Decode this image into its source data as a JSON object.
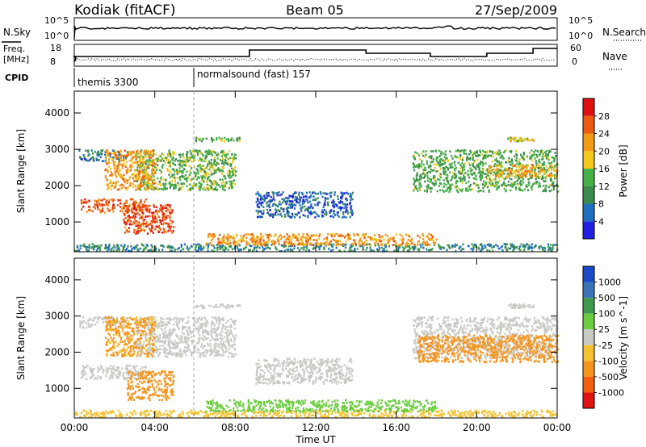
{
  "header": {
    "station": "Kodiak (fitACF)",
    "beam": "Beam 05",
    "date": "27/Sep/2009"
  },
  "top_panels": {
    "nsky": {
      "label": "N.Sky",
      "ticks": [
        "10^5",
        "10^0"
      ]
    },
    "nsearch": {
      "label": "N.Search",
      "ticks": [
        "10^5",
        "10^0"
      ]
    },
    "freq": {
      "label_line1": "Freq.",
      "label_line2": "[MHz]",
      "ticks": [
        "18",
        "8"
      ]
    },
    "nave": {
      "label": "Nave",
      "ticks": [
        "60",
        "0"
      ]
    },
    "cpid": {
      "label": "CPID",
      "entries": [
        {
          "text": "themis 3300",
          "start_hour": 0
        },
        {
          "text": "normalsound (fast) 157",
          "start_hour": 6
        }
      ]
    }
  },
  "colors": {
    "power_scale": [
      "#2020e0",
      "#1f6fc0",
      "#3c8a4c",
      "#45b045",
      "#f2c81e",
      "#f39a17",
      "#ee5a12",
      "#e01010"
    ],
    "velocity_scale": [
      "#1d48c8",
      "#3b74b8",
      "#3e9a4e",
      "#6acd3e",
      "#c9c9c4",
      "#f5c330",
      "#f7941d",
      "#f45e0e",
      "#e01212"
    ]
  },
  "chart_data": [
    {
      "type": "heatmap",
      "title": "Power",
      "xlabel": "Time UT",
      "ylabel": "Slant Range [km]",
      "x_ticks": [
        "00:00",
        "04:00",
        "08:00",
        "12:00",
        "16:00",
        "20:00",
        "00:00"
      ],
      "xlim": [
        0,
        24
      ],
      "y_ticks": [
        "1000",
        "2000",
        "3000",
        "4000"
      ],
      "ylim": [
        180,
        4600
      ],
      "colorbar": {
        "label": "Power [dB]",
        "ticks": [
          "4",
          "8",
          "12",
          "16",
          "20",
          "24",
          "28"
        ],
        "range": [
          0,
          30
        ]
      },
      "regions": [
        {
          "x": [
            0.3,
            3.6
          ],
          "y": [
            1280,
            1660
          ],
          "value": 26
        },
        {
          "x": [
            2.4,
            4.9
          ],
          "y": [
            700,
            1500
          ],
          "value": 27
        },
        {
          "x": [
            0.2,
            2.6
          ],
          "y": [
            2700,
            3000
          ],
          "value": 7
        },
        {
          "x": [
            3.0,
            8.0
          ],
          "y": [
            1900,
            3000
          ],
          "value": 14
        },
        {
          "x": [
            1.5,
            4.0
          ],
          "y": [
            1900,
            3000
          ],
          "value": 22
        },
        {
          "x": [
            0.0,
            24.0
          ],
          "y": [
            220,
            420
          ],
          "value": 9
        },
        {
          "x": [
            6.5,
            18.0
          ],
          "y": [
            380,
            700
          ],
          "value": 22
        },
        {
          "x": [
            9.0,
            13.8
          ],
          "y": [
            1150,
            1850
          ],
          "value": 6
        },
        {
          "x": [
            16.8,
            24.0
          ],
          "y": [
            1850,
            3000
          ],
          "value": 13
        },
        {
          "x": [
            20.5,
            24.0
          ],
          "y": [
            2250,
            2600
          ],
          "value": 21
        },
        {
          "x": [
            6.0,
            8.2
          ],
          "y": [
            3250,
            3350
          ],
          "value": 13
        },
        {
          "x": [
            21.5,
            22.8
          ],
          "y": [
            3250,
            3350
          ],
          "value": 18
        }
      ]
    },
    {
      "type": "heatmap",
      "title": "Velocity",
      "xlabel": "Time UT",
      "ylabel": "Slant Range [km]",
      "x_ticks": [
        "00:00",
        "04:00",
        "08:00",
        "12:00",
        "16:00",
        "20:00",
        "00:00"
      ],
      "xlim": [
        0,
        24
      ],
      "y_ticks": [
        "1000",
        "2000",
        "3000",
        "4000"
      ],
      "ylim": [
        180,
        4600
      ],
      "colorbar": {
        "label": "Velocity [m s^-1]",
        "ticks": [
          "1000",
          "500",
          "100",
          "25",
          "-25",
          "-100",
          "-500",
          "-1000"
        ]
      },
      "regions": [
        {
          "x": [
            0.3,
            3.6
          ],
          "y": [
            1280,
            1660
          ],
          "value": 10
        },
        {
          "x": [
            2.6,
            4.9
          ],
          "y": [
            700,
            1500
          ],
          "value": -350
        },
        {
          "x": [
            0.2,
            2.6
          ],
          "y": [
            2700,
            3000
          ],
          "value": 10
        },
        {
          "x": [
            3.0,
            8.0
          ],
          "y": [
            1900,
            3000
          ],
          "value": 10
        },
        {
          "x": [
            1.5,
            4.0
          ],
          "y": [
            1900,
            3000
          ],
          "value": -120
        },
        {
          "x": [
            0.0,
            24.0
          ],
          "y": [
            220,
            420
          ],
          "value": -60
        },
        {
          "x": [
            6.5,
            18.0
          ],
          "y": [
            380,
            700
          ],
          "value": 60
        },
        {
          "x": [
            9.0,
            13.8
          ],
          "y": [
            1150,
            1850
          ],
          "value": 10
        },
        {
          "x": [
            16.8,
            24.0
          ],
          "y": [
            1850,
            3000
          ],
          "value": 10
        },
        {
          "x": [
            17.0,
            24.0
          ],
          "y": [
            1750,
            2500
          ],
          "value": -300
        },
        {
          "x": [
            6.0,
            8.2
          ],
          "y": [
            3250,
            3350
          ],
          "value": 10
        },
        {
          "x": [
            21.5,
            22.8
          ],
          "y": [
            3250,
            3350
          ],
          "value": 10
        }
      ]
    }
  ]
}
